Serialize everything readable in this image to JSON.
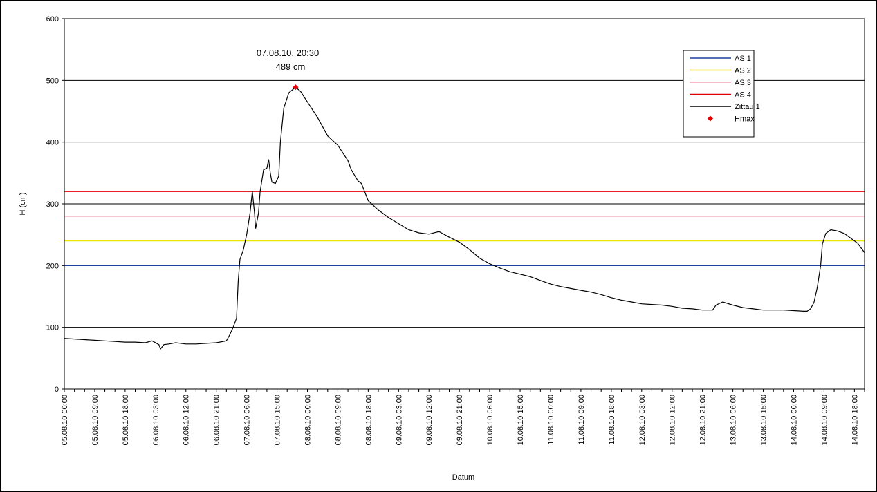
{
  "chart_data": {
    "type": "line",
    "xlabel": "Datum",
    "ylabel": "H (cm)",
    "ylim": [
      0,
      600
    ],
    "yticks": [
      0,
      100,
      200,
      300,
      400,
      500,
      600
    ],
    "xlim": [
      "05.08.10 00:00",
      "14.08.10 21:00"
    ],
    "xtick_labels": [
      "05.08.10 00:00",
      "05.08.10 09:00",
      "05.08.10 18:00",
      "06.08.10 03:00",
      "06.08.10 12:00",
      "06.08.10 21:00",
      "07.08.10 06:00",
      "07.08.10 15:00",
      "08.08.10 00:00",
      "08.08.10 09:00",
      "08.08.10 18:00",
      "09.08.10 03:00",
      "09.08.10 12:00",
      "09.08.10 21:00",
      "10.08.10 06:00",
      "10.08.10 15:00",
      "11.08.10 00:00",
      "11.08.10 09:00",
      "11.08.10 18:00",
      "12.08.10 03:00",
      "12.08.10 12:00",
      "12.08.10 21:00",
      "13.08.10 06:00",
      "13.08.10 15:00",
      "14.08.10 00:00",
      "14.08.10 09:00",
      "14.08.10 18:00"
    ],
    "grid": "horizontal",
    "legend_position": "top-right",
    "thresholds": [
      {
        "name": "AS 1",
        "value": 200,
        "color": "#1f3f9e"
      },
      {
        "name": "AS 2",
        "value": 240,
        "color": "#e8e800"
      },
      {
        "name": "AS 3",
        "value": 280,
        "color": "#f4a3b8"
      },
      {
        "name": "AS 4",
        "value": 320,
        "color": "#e00000"
      }
    ],
    "series": [
      {
        "name": "Zittau 1",
        "color": "#000000",
        "points": [
          [
            "05.08.10 00:00",
            82
          ],
          [
            "05.08.10 03:00",
            81
          ],
          [
            "05.08.10 06:00",
            80
          ],
          [
            "05.08.10 09:00",
            79
          ],
          [
            "05.08.10 12:00",
            78
          ],
          [
            "05.08.10 15:00",
            77
          ],
          [
            "05.08.10 18:00",
            76
          ],
          [
            "05.08.10 21:00",
            76
          ],
          [
            "06.08.10 00:00",
            75
          ],
          [
            "06.08.10 02:00",
            78
          ],
          [
            "06.08.10 04:00",
            72
          ],
          [
            "06.08.10 04:30",
            65
          ],
          [
            "06.08.10 05:30",
            72
          ],
          [
            "06.08.10 07:00",
            73
          ],
          [
            "06.08.10 09:00",
            75
          ],
          [
            "06.08.10 12:00",
            73
          ],
          [
            "06.08.10 15:00",
            73
          ],
          [
            "06.08.10 18:00",
            74
          ],
          [
            "06.08.10 21:00",
            75
          ],
          [
            "07.08.10 00:00",
            78
          ],
          [
            "07.08.10 01:00",
            88
          ],
          [
            "07.08.10 02:00",
            100
          ],
          [
            "07.08.10 03:00",
            115
          ],
          [
            "07.08.10 03:30",
            175
          ],
          [
            "07.08.10 04:00",
            210
          ],
          [
            "07.08.10 05:00",
            225
          ],
          [
            "07.08.10 06:00",
            250
          ],
          [
            "07.08.10 07:00",
            285
          ],
          [
            "07.08.10 07:40",
            320
          ],
          [
            "07.08.10 08:20",
            285
          ],
          [
            "07.08.10 08:40",
            260
          ],
          [
            "07.08.10 09:30",
            285
          ],
          [
            "07.08.10 10:00",
            320
          ],
          [
            "07.08.10 11:00",
            355
          ],
          [
            "07.08.10 12:00",
            358
          ],
          [
            "07.08.10 12:30",
            372
          ],
          [
            "07.08.10 13:00",
            350
          ],
          [
            "07.08.10 13:30",
            335
          ],
          [
            "07.08.10 14:30",
            333
          ],
          [
            "07.08.10 15:30",
            345
          ],
          [
            "07.08.10 16:00",
            400
          ],
          [
            "07.08.10 17:00",
            455
          ],
          [
            "07.08.10 18:30",
            480
          ],
          [
            "07.08.10 20:30",
            489
          ],
          [
            "07.08.10 22:00",
            482
          ],
          [
            "08.08.10 00:00",
            465
          ],
          [
            "08.08.10 03:00",
            440
          ],
          [
            "08.08.10 06:00",
            410
          ],
          [
            "08.08.10 09:00",
            395
          ],
          [
            "08.08.10 12:00",
            370
          ],
          [
            "08.08.10 13:00",
            355
          ],
          [
            "08.08.10 15:00",
            337
          ],
          [
            "08.08.10 16:00",
            333
          ],
          [
            "08.08.10 18:00",
            305
          ],
          [
            "08.08.10 21:00",
            290
          ],
          [
            "09.08.10 00:00",
            278
          ],
          [
            "09.08.10 03:00",
            268
          ],
          [
            "09.08.10 06:00",
            258
          ],
          [
            "09.08.10 09:00",
            253
          ],
          [
            "09.08.10 12:00",
            251
          ],
          [
            "09.08.10 15:00",
            255
          ],
          [
            "09.08.10 18:00",
            246
          ],
          [
            "09.08.10 21:00",
            238
          ],
          [
            "10.08.10 00:00",
            226
          ],
          [
            "10.08.10 03:00",
            212
          ],
          [
            "10.08.10 06:00",
            203
          ],
          [
            "10.08.10 09:00",
            196
          ],
          [
            "10.08.10 12:00",
            190
          ],
          [
            "10.08.10 15:00",
            186
          ],
          [
            "10.08.10 18:00",
            182
          ],
          [
            "10.08.10 21:00",
            176
          ],
          [
            "11.08.10 00:00",
            170
          ],
          [
            "11.08.10 03:00",
            166
          ],
          [
            "11.08.10 06:00",
            163
          ],
          [
            "11.08.10 09:00",
            160
          ],
          [
            "11.08.10 12:00",
            157
          ],
          [
            "11.08.10 15:00",
            153
          ],
          [
            "11.08.10 18:00",
            148
          ],
          [
            "11.08.10 21:00",
            144
          ],
          [
            "12.08.10 00:00",
            141
          ],
          [
            "12.08.10 03:00",
            138
          ],
          [
            "12.08.10 06:00",
            137
          ],
          [
            "12.08.10 09:00",
            136
          ],
          [
            "12.08.10 12:00",
            134
          ],
          [
            "12.08.10 15:00",
            131
          ],
          [
            "12.08.10 18:00",
            130
          ],
          [
            "12.08.10 21:00",
            128
          ],
          [
            "13.08.10 00:00",
            128
          ],
          [
            "13.08.10 01:00",
            136
          ],
          [
            "13.08.10 03:00",
            141
          ],
          [
            "13.08.10 06:00",
            136
          ],
          [
            "13.08.10 09:00",
            132
          ],
          [
            "13.08.10 12:00",
            130
          ],
          [
            "13.08.10 15:00",
            128
          ],
          [
            "13.08.10 18:00",
            128
          ],
          [
            "13.08.10 21:00",
            128
          ],
          [
            "14.08.10 00:00",
            127
          ],
          [
            "14.08.10 03:00",
            126
          ],
          [
            "14.08.10 04:00",
            126
          ],
          [
            "14.08.10 05:00",
            130
          ],
          [
            "14.08.10 06:00",
            140
          ],
          [
            "14.08.10 07:00",
            165
          ],
          [
            "14.08.10 08:00",
            200
          ],
          [
            "14.08.10 08:30",
            235
          ],
          [
            "14.08.10 09:30",
            252
          ],
          [
            "14.08.10 11:00",
            258
          ],
          [
            "14.08.10 13:00",
            256
          ],
          [
            "14.08.10 15:00",
            252
          ],
          [
            "14.08.10 17:00",
            244
          ],
          [
            "14.08.10 19:00",
            236
          ],
          [
            "14.08.10 21:00",
            221
          ]
        ]
      }
    ],
    "hmax": {
      "name": "Hmax",
      "x": "07.08.10 20:30",
      "y": 489,
      "color": "#e00000",
      "label_line1": "07.08.10, 20:30",
      "label_line2": "489 cm"
    },
    "legend": [
      "AS 1",
      "AS 2",
      "AS 3",
      "AS 4",
      "Zittau 1",
      "Hmax"
    ]
  }
}
